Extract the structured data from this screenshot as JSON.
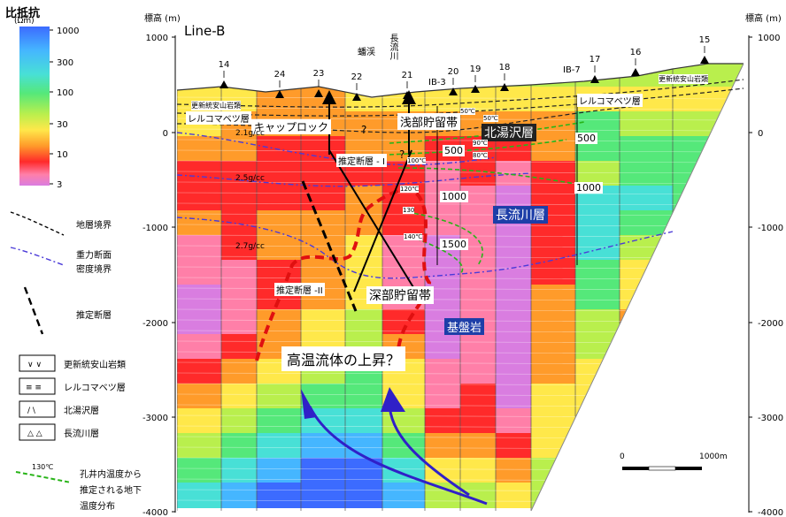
{
  "title": "Line-B",
  "axis": {
    "left_label": "標高 (m)",
    "right_label": "標高 (m)",
    "ticks": [
      "1000",
      "0",
      "-1000",
      "-2000",
      "-3000",
      "-4000"
    ]
  },
  "colorbar": {
    "title": "比抵抗",
    "unit": "(Ωm)",
    "ticks": [
      "1000",
      "300",
      "100",
      "30",
      "10",
      "3"
    ],
    "colors": [
      "#d97de0",
      "#ff7fa8",
      "#ff2a2a",
      "#ff9b2a",
      "#ffe84a",
      "#b9ef4d",
      "#55e87a",
      "#48e0d6",
      "#45b6ff",
      "#3c6bff"
    ]
  },
  "stations": [
    {
      "label": "14"
    },
    {
      "label": "24"
    },
    {
      "label": "23"
    },
    {
      "label": "22"
    },
    {
      "label": "21"
    },
    {
      "label": "20"
    },
    {
      "label": "19"
    },
    {
      "label": "18"
    },
    {
      "label": "17"
    },
    {
      "label": "16"
    },
    {
      "label": "15"
    }
  ],
  "wells": [
    "IB-3",
    "IB-7"
  ],
  "rivers": [
    "蟠渓",
    "長流川"
  ],
  "labels": {
    "shallow_reservoir": "浅部貯留帯",
    "deep_reservoir": "深部貯留帯",
    "cap_rock": "キャップロック",
    "kitayuzawa": "北湯沢層",
    "osarugawa": "長流川層",
    "basement": "基盤岩",
    "fault1": "推定断層 - I",
    "fault2": "推定断層 -II",
    "rerukomabetsu": "レルコマベツ層",
    "andesite": "更新統安山岩類",
    "density21": "2.1g/cc",
    "density25": "2.5g/cc",
    "density27": "2.7g/cc",
    "fluid": "高温流体の上昇？",
    "depth500": "500",
    "depth1000": "1000",
    "depth1500": "1500",
    "iso500": "500",
    "iso1000": "1000",
    "temp_a": "100℃",
    "temp_b": "120℃",
    "temp_c": "130",
    "temp_d": "140℃",
    "temp_e": "50℃",
    "temp_f": "50℃",
    "temp_g": "90℃",
    "temp_h": "80℃",
    "qmark": "?"
  },
  "legend": {
    "formation_boundary": "地層境界",
    "gravity1": "重力断面",
    "gravity2": "密度境界",
    "fault": "推定断層",
    "andesite": "更新統安山岩類",
    "rerukomabetsu": "レルコマベツ層",
    "kitayuzawa": "北湯沢層",
    "osarugawa": "長流川層",
    "temp_sym": "130℃",
    "temp1": "孔井内温度から",
    "temp2": "推定される地下",
    "temp3": "温度分布"
  },
  "scale": {
    "zero": "0",
    "max": "1000m"
  }
}
